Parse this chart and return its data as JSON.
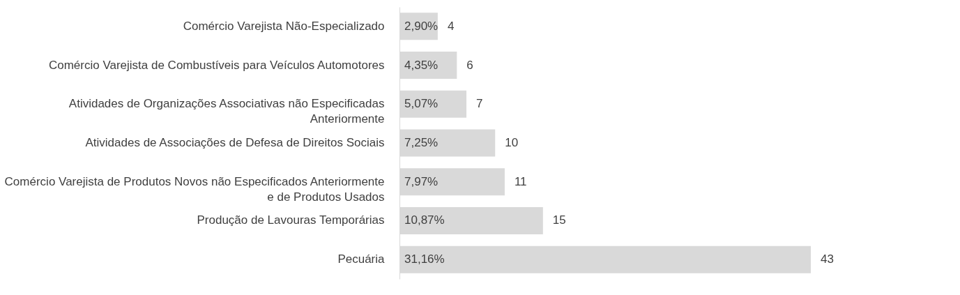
{
  "chart_data": {
    "type": "bar",
    "orientation": "horizontal",
    "categories": [
      "Comércio Varejista Não-Especializado",
      "Comércio Varejista de Combustíveis para Veículos Automotores",
      "Atividades de Organizações Associativas não Especificadas\nAnteriormente",
      "Atividades de Associações de Defesa de Direitos Sociais",
      "Comércio Varejista de Produtos Novos não Especificados Anteriormente\ne de Produtos Usados",
      "Produção de Lavouras Temporárias",
      "Pecuária"
    ],
    "values": [
      4,
      6,
      7,
      10,
      11,
      15,
      43
    ],
    "data_labels": true,
    "color": "#d9d9d9",
    "annotations": [
      "2,90%",
      "4,35%",
      "5,07%",
      "7,25%",
      "7,97%",
      "10,87%",
      "31,16%"
    ]
  }
}
